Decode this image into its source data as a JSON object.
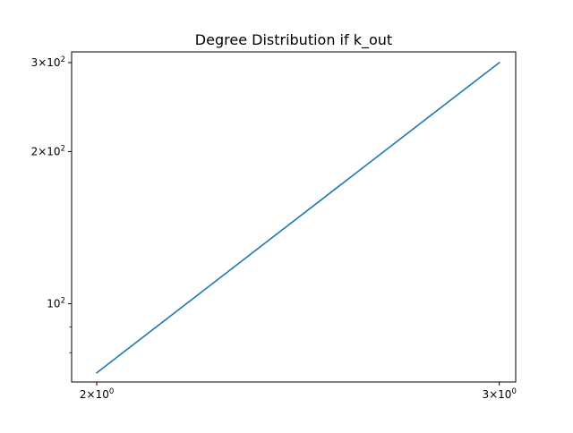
{
  "chart_data": {
    "type": "line",
    "title": "Degree Distribution if k_out",
    "xlabel": "",
    "ylabel": "",
    "x_scale": "log",
    "y_scale": "log",
    "xlim": [
      1.95,
      3.05
    ],
    "ylim": [
      70,
      315
    ],
    "grid": false,
    "series": [
      {
        "name": "k_out",
        "color": "#1f77b4",
        "x": [
          2,
          3
        ],
        "y": [
          73,
          300
        ]
      }
    ],
    "x_ticks": [
      {
        "value": 2,
        "base": "2",
        "exp": "0"
      },
      {
        "value": 3,
        "base": "3",
        "exp": "0"
      }
    ],
    "y_ticks": [
      {
        "value": 100,
        "base": "10",
        "exp": "2",
        "kind": "plain"
      },
      {
        "value": 200,
        "base": "2",
        "exp": "2",
        "kind": "times"
      },
      {
        "value": 300,
        "base": "3",
        "exp": "2",
        "kind": "times"
      }
    ],
    "y_minor_ticks": [
      80,
      90
    ]
  }
}
